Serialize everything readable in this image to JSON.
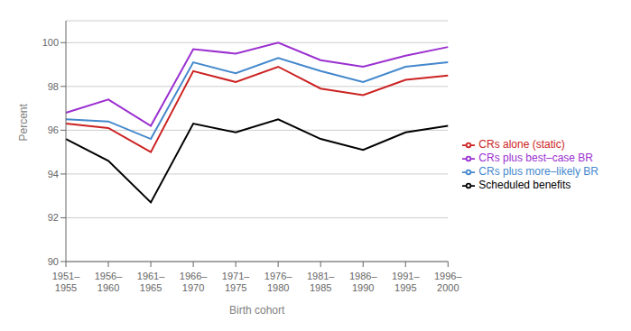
{
  "chart_data": {
    "type": "line",
    "categories": [
      "1951–\n1955",
      "1956–\n1960",
      "1961–\n1965",
      "1966–\n1970",
      "1971–\n1975",
      "1976–\n1980",
      "1981–\n1985",
      "1986–\n1990",
      "1991–\n1995",
      "1996–\n2000"
    ],
    "series": [
      {
        "name": "CRs plus best–case BR",
        "color": "#9B30D0",
        "values": [
          96.8,
          97.4,
          96.2,
          99.7,
          99.5,
          100.0,
          99.2,
          98.9,
          99.4,
          99.8
        ]
      },
      {
        "name": "CRs plus more–likely BR",
        "color": "#4488CC",
        "values": [
          96.5,
          96.4,
          95.6,
          99.1,
          98.6,
          99.3,
          98.7,
          98.2,
          98.9,
          99.1
        ]
      },
      {
        "name": "CRs alone (static)",
        "color": "#CC2222",
        "values": [
          96.3,
          96.1,
          95.0,
          98.7,
          98.2,
          98.9,
          97.9,
          97.6,
          98.3,
          98.5
        ]
      },
      {
        "name": "Scheduled benefits",
        "color": "#000000",
        "values": [
          95.6,
          94.6,
          92.7,
          96.3,
          95.9,
          96.5,
          95.6,
          95.1,
          95.9,
          96.2
        ]
      }
    ],
    "xlabel": "Birth cohort",
    "ylabel": "Percent",
    "ylim": [
      90,
      101
    ],
    "yticks": [
      90,
      92,
      94,
      96,
      98,
      100
    ],
    "grid": true,
    "legend": "right"
  }
}
